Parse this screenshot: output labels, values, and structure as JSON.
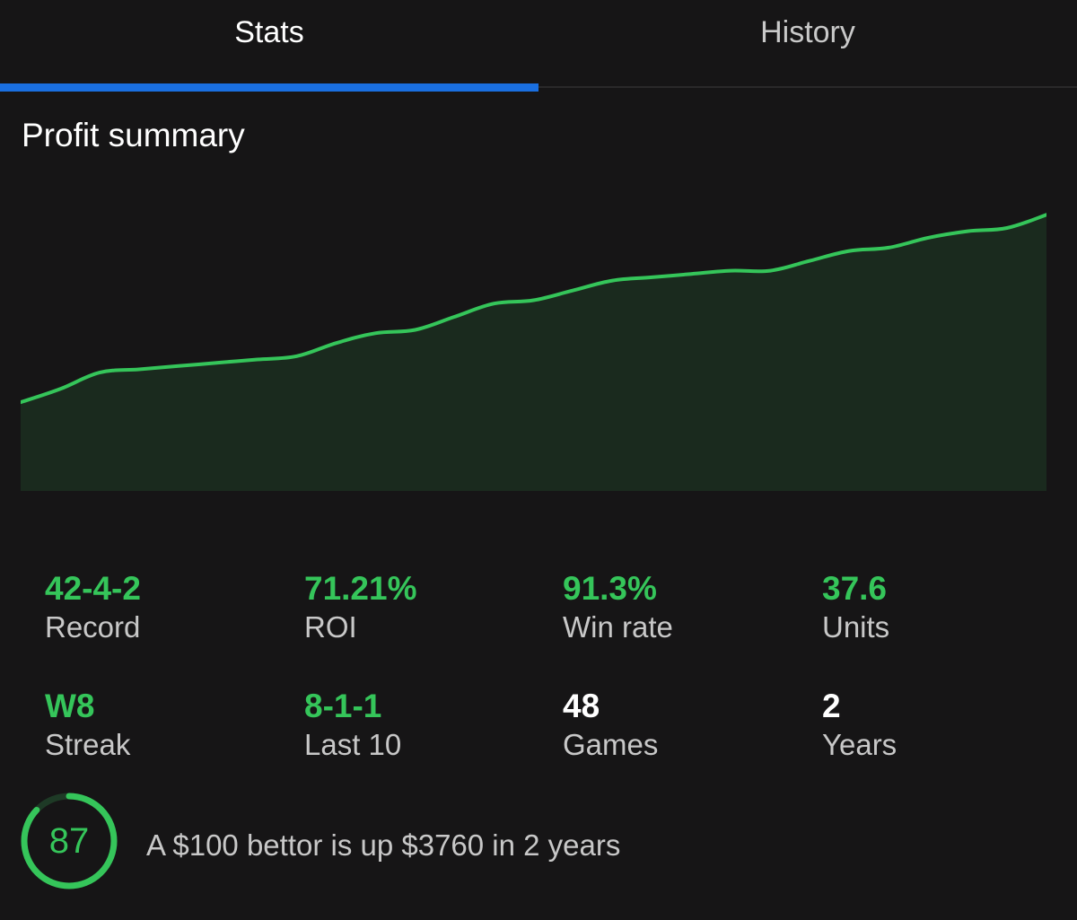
{
  "tabs": [
    {
      "label": "Stats",
      "active": true
    },
    {
      "label": "History",
      "active": false
    }
  ],
  "section_title": "Profit summary",
  "colors": {
    "accent_green": "#35c55a",
    "tab_indicator": "#1a6fe0",
    "background": "#161516"
  },
  "chart_data": {
    "type": "area",
    "title": "Profit summary",
    "x": [
      0,
      1,
      2,
      3,
      4,
      5,
      6,
      7,
      8,
      9,
      10,
      11,
      12,
      13,
      14,
      15,
      16,
      17,
      18,
      19,
      20,
      21,
      22,
      23,
      24,
      25,
      26
    ],
    "values": [
      0,
      4,
      9,
      10,
      11,
      12,
      13,
      14,
      18,
      21,
      22,
      26,
      30,
      31,
      34,
      37,
      38,
      39,
      40,
      40,
      43,
      46,
      47,
      50,
      52,
      53,
      57
    ],
    "ylim": [
      -27,
      65
    ],
    "grid": false,
    "legend": "none",
    "line_color": "#35c55a",
    "fill_color": "#1a2a1e"
  },
  "stats": [
    {
      "value": "42-4-2",
      "label": "Record",
      "highlight": true
    },
    {
      "value": "71.21%",
      "label": "ROI",
      "highlight": true
    },
    {
      "value": "91.3%",
      "label": "Win rate",
      "highlight": true
    },
    {
      "value": "37.6",
      "label": "Units",
      "highlight": true
    },
    {
      "value": "W8",
      "label": "Streak",
      "highlight": true
    },
    {
      "value": "8-1-1",
      "label": "Last 10",
      "highlight": true
    },
    {
      "value": "48",
      "label": "Games",
      "highlight": false
    },
    {
      "value": "2",
      "label": "Years",
      "highlight": false
    }
  ],
  "score": {
    "value": "87",
    "fraction": 0.87,
    "icon": "score-ring-icon"
  },
  "summary_text": "A $100 bettor is up $3760 in 2 years"
}
